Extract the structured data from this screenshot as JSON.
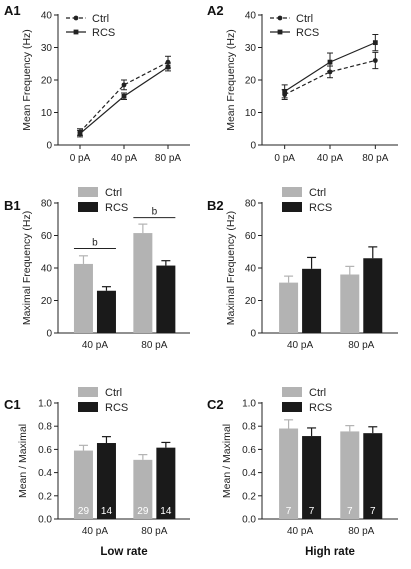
{
  "chart_data": [
    {
      "id": "A1",
      "type": "line",
      "panel_label": "A1",
      "categories": [
        "0 pA",
        "40 pA",
        "80 pA"
      ],
      "ylabel": "Mean Frequency (Hz)",
      "ylim": [
        0,
        40
      ],
      "yticks": [
        0,
        10,
        20,
        30,
        40
      ],
      "legend": "top-left",
      "series": [
        {
          "name": "Ctrl",
          "style": "dashed",
          "marker": "circle",
          "values": [
            4,
            18.5,
            25.5
          ],
          "err": [
            1,
            1.5,
            1.8
          ]
        },
        {
          "name": "RCS",
          "style": "solid",
          "marker": "square",
          "values": [
            3.5,
            15,
            24
          ],
          "err": [
            1,
            1,
            1.2
          ]
        }
      ]
    },
    {
      "id": "A2",
      "type": "line",
      "panel_label": "A2",
      "categories": [
        "0 pA",
        "40 pA",
        "80 pA"
      ],
      "ylabel": "Mean Frequency (Hz)",
      "ylim": [
        0,
        40
      ],
      "yticks": [
        0,
        10,
        20,
        30,
        40
      ],
      "legend": "top-left",
      "series": [
        {
          "name": "Ctrl",
          "style": "dashed",
          "marker": "circle",
          "values": [
            15.5,
            22.5,
            26
          ],
          "err": [
            1.5,
            1.8,
            2.5
          ]
        },
        {
          "name": "RCS",
          "style": "solid",
          "marker": "square",
          "values": [
            16.5,
            25.5,
            31.5
          ],
          "err": [
            2,
            2.8,
            2.5
          ]
        }
      ]
    },
    {
      "id": "B1",
      "type": "bar",
      "panel_label": "B1",
      "categories": [
        "40 pA",
        "80 pA"
      ],
      "ylabel": "Maximal Frequency (Hz)",
      "ylim": [
        0,
        80
      ],
      "yticks": [
        0,
        20,
        40,
        60,
        80
      ],
      "legend": "top",
      "series": [
        {
          "name": "Ctrl",
          "color": "#b3b3b3",
          "values": [
            42.5,
            61.5
          ],
          "err": [
            5,
            5.5
          ]
        },
        {
          "name": "RCS",
          "color": "#1a1a1a",
          "values": [
            26,
            41.5
          ],
          "err": [
            2.5,
            3
          ]
        }
      ],
      "significance": [
        {
          "category": 0,
          "label": "b",
          "y": 52
        },
        {
          "category": 1,
          "label": "b",
          "y": 71
        }
      ]
    },
    {
      "id": "B2",
      "type": "bar",
      "panel_label": "B2",
      "categories": [
        "40 pA",
        "80 pA"
      ],
      "ylabel": "Maximal Frequency (Hz)",
      "ylim": [
        0,
        80
      ],
      "yticks": [
        0,
        20,
        40,
        60,
        80
      ],
      "legend": "top",
      "series": [
        {
          "name": "Ctrl",
          "color": "#b3b3b3",
          "values": [
            31,
            36
          ],
          "err": [
            4,
            5
          ]
        },
        {
          "name": "RCS",
          "color": "#1a1a1a",
          "values": [
            39.5,
            46
          ],
          "err": [
            7,
            7
          ]
        }
      ]
    },
    {
      "id": "C1",
      "type": "bar",
      "panel_label": "C1",
      "categories": [
        "40 pA",
        "80 pA"
      ],
      "ylabel": "Mean / Maximal",
      "ylim": [
        0,
        1.0
      ],
      "yticks": [
        0.0,
        0.2,
        0.4,
        0.6,
        0.8,
        1.0
      ],
      "legend": "top",
      "xlabel": "Low rate",
      "series": [
        {
          "name": "Ctrl",
          "color": "#b3b3b3",
          "values": [
            0.59,
            0.51
          ],
          "err": [
            0.045,
            0.045
          ],
          "n": [
            "29",
            "29"
          ]
        },
        {
          "name": "RCS",
          "color": "#1a1a1a",
          "values": [
            0.655,
            0.615
          ],
          "err": [
            0.055,
            0.045
          ],
          "n": [
            "14",
            "14"
          ]
        }
      ]
    },
    {
      "id": "C2",
      "type": "bar",
      "panel_label": "C2",
      "categories": [
        "40 pA",
        "80 pA"
      ],
      "ylabel": "Mean / Maximal",
      "ylim": [
        0,
        1.0
      ],
      "yticks": [
        0.0,
        0.2,
        0.4,
        0.6,
        0.8,
        1.0
      ],
      "legend": "top",
      "xlabel": "High rate",
      "series": [
        {
          "name": "Ctrl",
          "color": "#b3b3b3",
          "values": [
            0.78,
            0.755
          ],
          "err": [
            0.075,
            0.05
          ],
          "n": [
            "7",
            "7"
          ]
        },
        {
          "name": "RCS",
          "color": "#1a1a1a",
          "values": [
            0.715,
            0.74
          ],
          "err": [
            0.07,
            0.055
          ],
          "n": [
            "7",
            "7"
          ]
        }
      ]
    }
  ]
}
